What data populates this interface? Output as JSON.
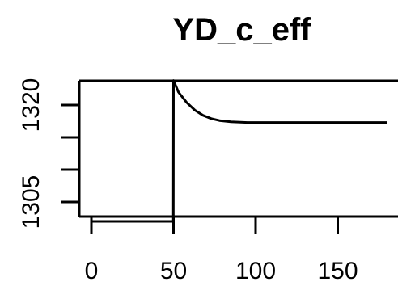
{
  "chart_data": {
    "type": "line",
    "title": "YD_c_eff",
    "xlabel": "",
    "ylabel": "",
    "xlim": [
      -5,
      185
    ],
    "ylim": [
      1301,
      1332
    ],
    "x_ticks": [
      0,
      50,
      100,
      150
    ],
    "y_ticks": [
      1305,
      1310,
      1315,
      1320
    ],
    "y_tick_labels_shown": [
      "1305",
      "1320"
    ],
    "series": [
      {
        "x": [
          0,
          49.9,
          50,
          53,
          58,
          63,
          68,
          73,
          78,
          85,
          95,
          110,
          130,
          160,
          180
        ],
        "y": [
          1302.0,
          1302.0,
          1323.8,
          1322.0,
          1320.4,
          1319.2,
          1318.4,
          1317.9,
          1317.6,
          1317.4,
          1317.3,
          1317.3,
          1317.3,
          1317.3,
          1317.3
        ],
        "color": "#000000"
      }
    ]
  }
}
